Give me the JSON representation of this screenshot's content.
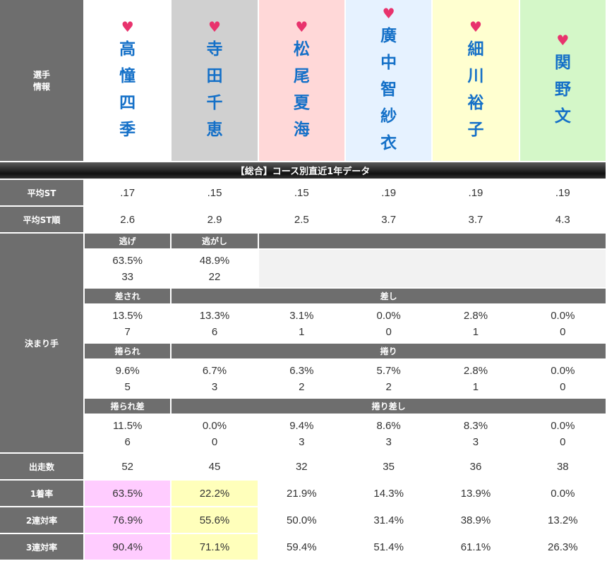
{
  "header": {
    "label_line1": "選手",
    "label_line2": "情報",
    "heart": "♥",
    "players": [
      {
        "chars": [
          "高",
          "憧",
          "四",
          "季"
        ]
      },
      {
        "chars": [
          "寺",
          "田",
          "千",
          "恵"
        ]
      },
      {
        "chars": [
          "松",
          "尾",
          "夏",
          "海"
        ]
      },
      {
        "chars": [
          "廣",
          "中",
          "智",
          "紗",
          "衣"
        ]
      },
      {
        "chars": [
          "細",
          "川",
          "裕",
          "子"
        ]
      },
      {
        "chars": [
          "関",
          "野",
          "文"
        ]
      }
    ]
  },
  "banner": "【総合】コース別直近1年データ",
  "avg_st": {
    "label": "平均ST",
    "values": [
      ".17",
      ".15",
      ".15",
      ".19",
      ".19",
      ".19"
    ]
  },
  "avg_st_rank": {
    "label": "平均ST順",
    "values": [
      "2.6",
      "2.9",
      "2.5",
      "3.7",
      "3.7",
      "4.3"
    ]
  },
  "kimarite": {
    "label": "決まり手",
    "nige": {
      "label": "逃げ",
      "pct": "63.5%",
      "count": "33"
    },
    "nigashi": {
      "label": "逃がし",
      "pct": "48.9%",
      "count": "22"
    },
    "sasare": {
      "label": "差され",
      "pct": "13.5%",
      "count": "7"
    },
    "sashi": {
      "label": "差し",
      "pcts": [
        "13.3%",
        "3.1%",
        "0.0%",
        "2.8%",
        "0.0%"
      ],
      "counts": [
        "6",
        "1",
        "0",
        "1",
        "0"
      ]
    },
    "makurare": {
      "label": "捲られ",
      "pct": "9.6%",
      "count": "5"
    },
    "makuri": {
      "label": "捲り",
      "pcts": [
        "6.7%",
        "6.3%",
        "5.7%",
        "2.8%",
        "0.0%"
      ],
      "counts": [
        "3",
        "2",
        "2",
        "1",
        "0"
      ]
    },
    "makurare_sashi": {
      "label": "捲られ差",
      "pct": "11.5%",
      "count": "6"
    },
    "makuri_sashi": {
      "label": "捲り差し",
      "pcts": [
        "0.0%",
        "9.4%",
        "8.6%",
        "8.3%",
        "0.0%"
      ],
      "counts": [
        "0",
        "3",
        "3",
        "3",
        "0"
      ]
    }
  },
  "starts": {
    "label": "出走数",
    "values": [
      "52",
      "45",
      "32",
      "35",
      "36",
      "38"
    ]
  },
  "win_rate": {
    "label": "1着率",
    "values": [
      "63.5%",
      "22.2%",
      "21.9%",
      "14.3%",
      "13.9%",
      "0.0%"
    ]
  },
  "top2_rate": {
    "label": "2連対率",
    "values": [
      "76.9%",
      "55.6%",
      "50.0%",
      "31.4%",
      "38.9%",
      "13.2%"
    ]
  },
  "top3_rate": {
    "label": "3連対率",
    "values": [
      "90.4%",
      "71.1%",
      "59.4%",
      "51.4%",
      "61.1%",
      "26.3%"
    ]
  },
  "colors": {
    "label_bg": "#6e6e6e",
    "name_text": "#1470c8",
    "heart": "#e8336d",
    "player_bg": [
      "#ffffff",
      "#d0d0d0",
      "#ffd8d8",
      "#e6f2ff",
      "#ffffd0",
      "#d4f7c8"
    ],
    "highlight_1st": "#ffccff",
    "highlight_2nd": "#ffffbb"
  }
}
